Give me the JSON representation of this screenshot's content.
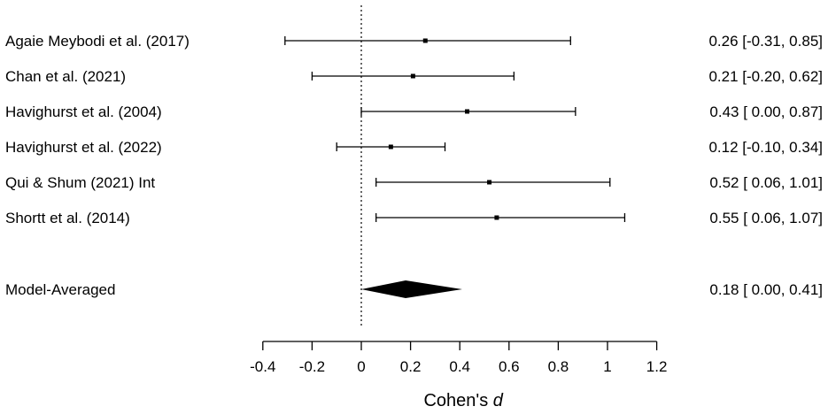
{
  "chart_data": {
    "type": "forest",
    "xlabel": "Cohen's ",
    "xlabel_italic": "d",
    "xlim": [
      -0.4,
      1.2
    ],
    "ticks": [
      "-0.4",
      "-0.2",
      "0",
      "0.2",
      "0.4",
      "0.6",
      "0.8",
      "1",
      "1.2"
    ],
    "reference_line": 0,
    "studies": [
      {
        "label": "Agaie Meybodi et al. (2017)",
        "estimate": 0.26,
        "lower": -0.31,
        "upper": 0.85,
        "text": "0.26 [-0.31, 0.85]"
      },
      {
        "label": "Chan et al. (2021)",
        "estimate": 0.21,
        "lower": -0.2,
        "upper": 0.62,
        "text": "0.21 [-0.20, 0.62]"
      },
      {
        "label": "Havighurst et al. (2004)",
        "estimate": 0.43,
        "lower": 0.0,
        "upper": 0.87,
        "text": "0.43 [ 0.00, 0.87]"
      },
      {
        "label": "Havighurst et al. (2022)",
        "estimate": 0.12,
        "lower": -0.1,
        "upper": 0.34,
        "text": "0.12 [-0.10, 0.34]"
      },
      {
        "label": "Qui & Shum (2021) Int",
        "estimate": 0.52,
        "lower": 0.06,
        "upper": 1.01,
        "text": "0.52 [ 0.06, 1.01]"
      },
      {
        "label": "Shortt et al. (2014)",
        "estimate": 0.55,
        "lower": 0.06,
        "upper": 1.07,
        "text": "0.55 [ 0.06, 1.07]"
      }
    ],
    "summary": {
      "label": "Model-Averaged",
      "estimate": 0.18,
      "lower": 0.0,
      "upper": 0.41,
      "text": "0.18 [ 0.00, 0.41]"
    }
  }
}
